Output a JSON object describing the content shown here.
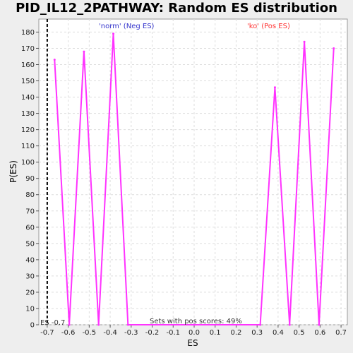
{
  "chart_data": {
    "type": "line",
    "title": "PID_IL12_2PATHWAY: Random ES distribution",
    "xlabel": "ES",
    "ylabel": "P(ES)",
    "xlim": [
      -0.74,
      0.73
    ],
    "ylim": [
      0,
      188
    ],
    "x_ticks": [
      -0.7,
      -0.6,
      -0.5,
      -0.4,
      -0.3,
      -0.2,
      -0.1,
      0.0,
      0.1,
      0.2,
      0.3,
      0.4,
      0.5,
      0.6,
      0.7
    ],
    "x_tick_labels": [
      "-0.7",
      "-0.6",
      "-0.5",
      "-0.4",
      "-0.3",
      "-0.2",
      "-0.1",
      "0.0",
      "0.1",
      "0.2",
      "0.3",
      "0.4",
      "0.5",
      "0.6",
      "0.7"
    ],
    "y_ticks": [
      0,
      10,
      20,
      30,
      40,
      50,
      60,
      70,
      80,
      90,
      100,
      110,
      120,
      130,
      140,
      150,
      160,
      170,
      180
    ],
    "grid": true,
    "line_color": "#ff33ff",
    "series": [
      {
        "x": [
          -0.665,
          -0.595,
          -0.525,
          -0.455,
          -0.385,
          -0.315,
          0.0,
          0.315,
          0.385,
          0.455,
          0.525,
          0.595,
          0.665
        ],
        "values": [
          163,
          0,
          168,
          0,
          179,
          0,
          0,
          0,
          146,
          0,
          174,
          0,
          170
        ]
      }
    ],
    "es_marker": {
      "x": -0.7,
      "label": "ES -0.7"
    },
    "annotations": {
      "neg_label": "'norm' (Neg ES)",
      "pos_label": "'ko' (Pos ES)",
      "pos_scores": "Sets with pos scores: 49%"
    },
    "colors": {
      "neg": "#3333cc",
      "pos": "#ff3333",
      "grid": "#dddddd"
    }
  }
}
